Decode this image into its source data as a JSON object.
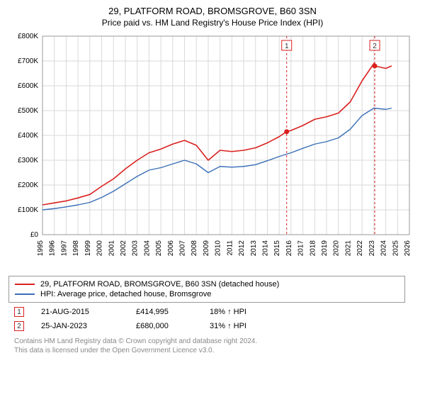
{
  "header": {
    "title": "29, PLATFORM ROAD, BROMSGROVE, B60 3SN",
    "subtitle": "Price paid vs. HM Land Registry's House Price Index (HPI)"
  },
  "chart": {
    "type": "line",
    "background_color": "#ffffff",
    "plot_border_color": "#999999",
    "grid_color": "#d9d9d9",
    "axis_text_color": "#000000",
    "axis_fontsize": 10,
    "x": {
      "min_year": 1995,
      "max_year": 2026,
      "tick_years": [
        1995,
        1996,
        1997,
        1998,
        1999,
        2000,
        2001,
        2002,
        2003,
        2004,
        2005,
        2006,
        2007,
        2008,
        2009,
        2010,
        2011,
        2012,
        2013,
        2014,
        2015,
        2016,
        2017,
        2018,
        2019,
        2020,
        2021,
        2022,
        2023,
        2024,
        2025,
        2026
      ]
    },
    "y": {
      "min": 0,
      "max": 800000,
      "tick_step": 100000,
      "tick_labels": [
        "£0",
        "£100K",
        "£200K",
        "£300K",
        "£400K",
        "£500K",
        "£600K",
        "£700K",
        "£800K"
      ]
    },
    "series": [
      {
        "key": "price_paid",
        "label": "29, PLATFORM ROAD, BROMSGROVE, B60 3SN (detached house)",
        "color": "#d9211f",
        "line_width": 1.6,
        "years": [
          1995,
          1996,
          1997,
          1998,
          1999,
          2000,
          2001,
          2002,
          2003,
          2004,
          2005,
          2006,
          2007,
          2008,
          2009,
          2010,
          2011,
          2012,
          2013,
          2014,
          2015,
          2015.6,
          2016,
          2017,
          2018,
          2019,
          2020,
          2021,
          2022,
          2023,
          2023.07,
          2024,
          2024.5
        ],
        "values": [
          120000,
          128000,
          136000,
          148000,
          162000,
          195000,
          225000,
          265000,
          300000,
          330000,
          345000,
          365000,
          380000,
          360000,
          300000,
          340000,
          335000,
          340000,
          350000,
          370000,
          395000,
          414995,
          420000,
          440000,
          465000,
          475000,
          490000,
          535000,
          620000,
          690000,
          680000,
          670000,
          680000
        ]
      },
      {
        "key": "hpi",
        "label": "HPI: Average price, detached house, Bromsgrove",
        "color": "#3a6fb7",
        "line_width": 1.4,
        "years": [
          1995,
          1996,
          1997,
          1998,
          1999,
          2000,
          2001,
          2002,
          2003,
          2004,
          2005,
          2006,
          2007,
          2008,
          2009,
          2010,
          2011,
          2012,
          2013,
          2014,
          2015,
          2016,
          2017,
          2018,
          2019,
          2020,
          2021,
          2022,
          2023,
          2024,
          2024.5
        ],
        "values": [
          100000,
          105000,
          112000,
          120000,
          130000,
          150000,
          175000,
          205000,
          235000,
          260000,
          270000,
          285000,
          300000,
          285000,
          250000,
          275000,
          272000,
          275000,
          282000,
          298000,
          315000,
          330000,
          348000,
          365000,
          375000,
          390000,
          425000,
          480000,
          510000,
          505000,
          510000
        ]
      }
    ],
    "markers": [
      {
        "id": "1",
        "year": 2015.63,
        "value": 414995,
        "date": "21-AUG-2015",
        "price_label": "£414,995",
        "delta_label": "18% ↑ HPI",
        "vline_color": "#d9211f",
        "badge_border": "#d9211f",
        "badge_text_color": "#333333"
      },
      {
        "id": "2",
        "year": 2023.07,
        "value": 680000,
        "date": "25-JAN-2023",
        "price_label": "£680,000",
        "delta_label": "31% ↑ HPI",
        "vline_color": "#d9211f",
        "badge_border": "#d9211f",
        "badge_text_color": "#333333"
      }
    ]
  },
  "legend": {
    "rows": [
      {
        "swatch_color": "#d9211f",
        "text": "29, PLATFORM ROAD, BROMSGROVE, B60 3SN (detached house)"
      },
      {
        "swatch_color": "#3a6fb7",
        "text": "HPI: Average price, detached house, Bromsgrove"
      }
    ]
  },
  "footer": {
    "line1": "Contains HM Land Registry data © Crown copyright and database right 2024.",
    "line2": "This data is licensed under the Open Government Licence v3.0."
  }
}
